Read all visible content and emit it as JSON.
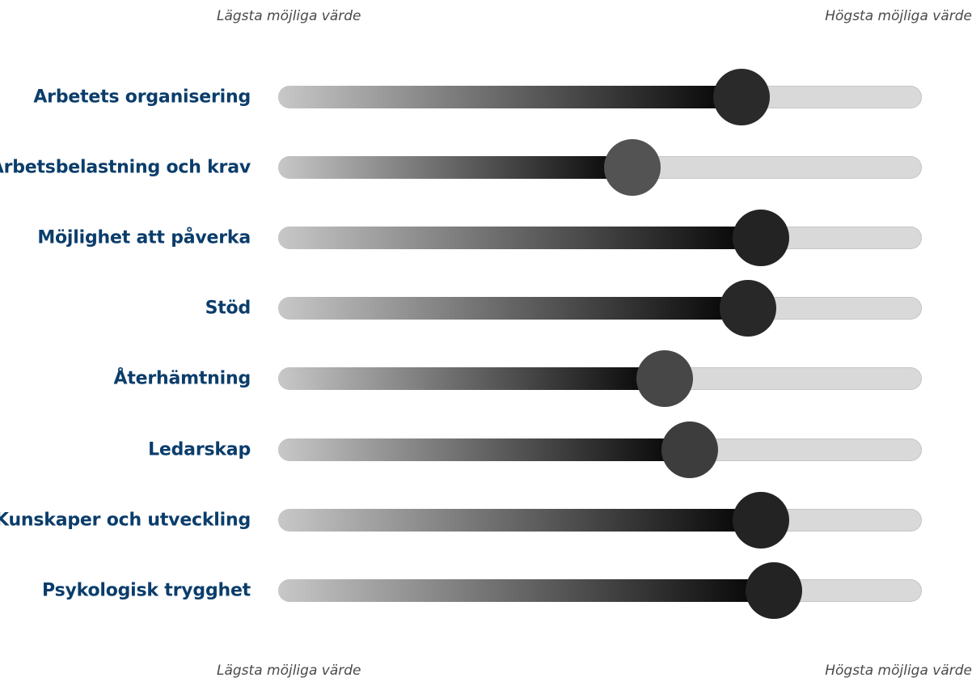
{
  "scale": {
    "min_label": "Lägsta möjliga värde",
    "max_label": "Högsta möjliga värde"
  },
  "chart_data": {
    "type": "bar",
    "xlim": [
      0,
      1
    ],
    "categories": [
      "Arbetets organisering",
      "Arbetsbelastning och krav",
      "Möjlighet att påverka",
      "Stöd",
      "Återhämtning",
      "Ledarskap",
      "Kunskaper och utveckling",
      "Psykologisk trygghet"
    ],
    "values": [
      0.72,
      0.55,
      0.75,
      0.73,
      0.6,
      0.64,
      0.75,
      0.77
    ],
    "colors": {
      "label": "#0b3d6b",
      "track": "#d9d9d9",
      "fill_start": "#c8c8c8",
      "fill_end": "#000000"
    }
  }
}
